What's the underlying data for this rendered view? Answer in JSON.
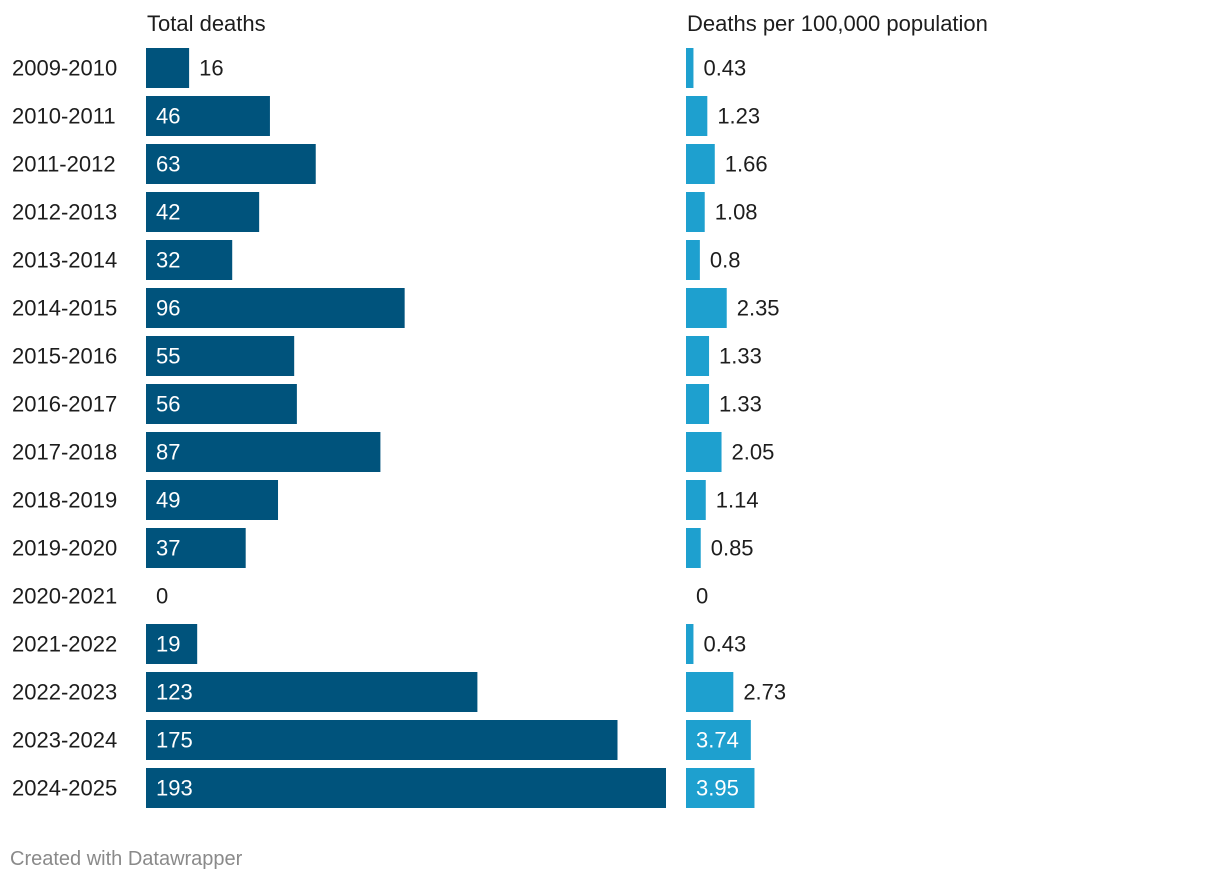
{
  "chart_data": {
    "type": "bar",
    "orientation": "horizontal",
    "categories": [
      "2009-2010",
      "2010-2011",
      "2011-2012",
      "2012-2013",
      "2013-2014",
      "2014-2015",
      "2015-2016",
      "2016-2017",
      "2017-2018",
      "2018-2019",
      "2019-2020",
      "2020-2021",
      "2021-2022",
      "2022-2023",
      "2023-2024",
      "2024-2025"
    ],
    "series": [
      {
        "name": "Total deaths",
        "values": [
          16,
          46,
          63,
          42,
          32,
          96,
          55,
          56,
          87,
          49,
          37,
          0,
          19,
          123,
          175,
          193
        ],
        "labels": [
          "16",
          "46",
          "63",
          "42",
          "32",
          "96",
          "55",
          "56",
          "87",
          "49",
          "37",
          "0",
          "19",
          "123",
          "175",
          "193"
        ],
        "color": "#00537c",
        "max": 193
      },
      {
        "name": "Deaths per 100,000 population",
        "values": [
          0.43,
          1.23,
          1.66,
          1.08,
          0.8,
          2.35,
          1.33,
          1.33,
          2.05,
          1.14,
          0.85,
          0,
          0.43,
          2.73,
          3.74,
          3.95
        ],
        "labels": [
          "0.43",
          "1.23",
          "1.66",
          "1.08",
          "0.8",
          "2.35",
          "1.33",
          "1.33",
          "2.05",
          "1.14",
          "0.85",
          "0",
          "0.43",
          "2.73",
          "3.74",
          "3.95"
        ],
        "color": "#1ea0cf",
        "max": 30
      }
    ]
  },
  "footer": {
    "credit": "Created with Datawrapper"
  }
}
